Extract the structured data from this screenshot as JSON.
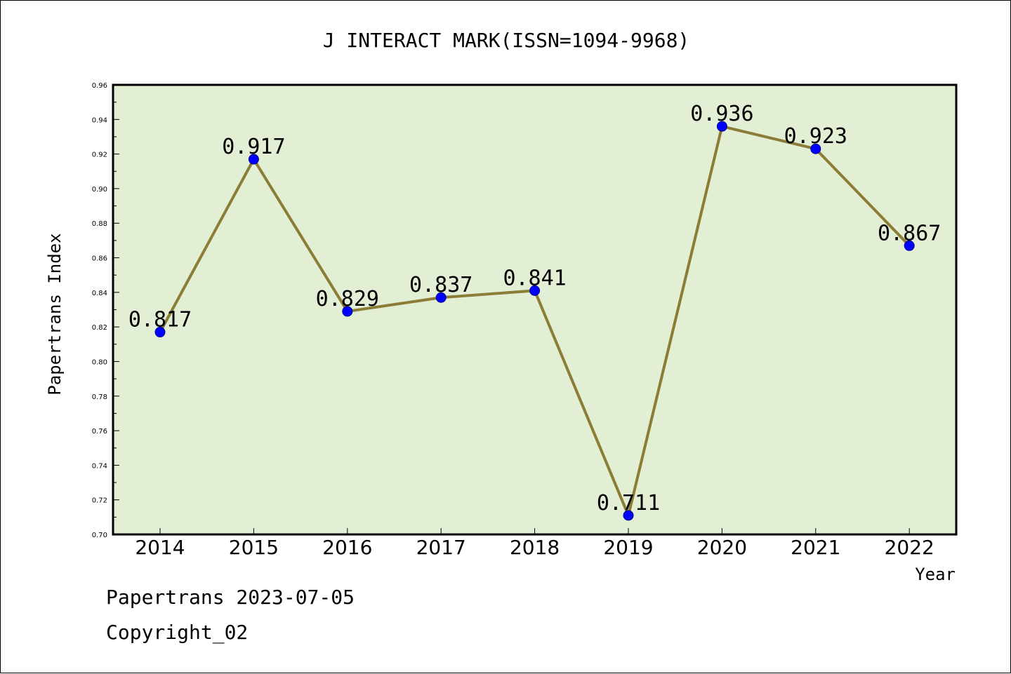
{
  "chart_data": {
    "type": "line",
    "title": "J INTERACT MARK(ISSN=1094-9968)",
    "xlabel": "Year",
    "ylabel": "Papertrans Index",
    "categories": [
      "2014",
      "2015",
      "2016",
      "2017",
      "2018",
      "2019",
      "2020",
      "2021",
      "2022"
    ],
    "series": [
      {
        "values": [
          0.817,
          0.917,
          0.829,
          0.837,
          0.841,
          0.711,
          0.936,
          0.923,
          0.867
        ],
        "data_labels": [
          "0.817",
          "0.917",
          "0.829",
          "0.837",
          "0.841",
          "0.711",
          "0.936",
          "0.923",
          "0.867"
        ]
      }
    ],
    "ylim": [
      0.7,
      0.96
    ],
    "yticks": [
      "0.70",
      "0.72",
      "0.74",
      "0.76",
      "0.78",
      "0.80",
      "0.82",
      "0.84",
      "0.86",
      "0.88",
      "0.90",
      "0.92",
      "0.94",
      "0.96"
    ],
    "grid": false,
    "colors": {
      "plot_background": "#e2efd5",
      "line": "#8b7d35",
      "marker": "#0000ff",
      "marker_edge": "#00008b",
      "axis": "#000000"
    }
  },
  "footer": {
    "source": "Papertrans 2023-07-05",
    "copyright": "Copyright_02"
  }
}
